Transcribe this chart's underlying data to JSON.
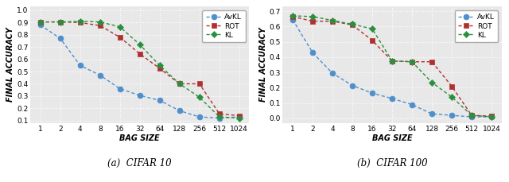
{
  "x_labels": [
    "1",
    "2",
    "4",
    "8",
    "16",
    "32",
    "64",
    "128",
    "256",
    "512",
    "1024"
  ],
  "cifar10": {
    "AvKL": [
      0.88,
      0.77,
      0.55,
      0.47,
      0.36,
      0.305,
      0.265,
      0.18,
      0.13,
      0.12,
      0.13
    ],
    "ROT": [
      0.905,
      0.905,
      0.9,
      0.875,
      0.78,
      0.645,
      0.525,
      0.4,
      0.4,
      0.155,
      0.14
    ],
    "KL": [
      0.905,
      0.905,
      0.91,
      0.905,
      0.865,
      0.72,
      0.55,
      0.4,
      0.29,
      0.13,
      0.12
    ]
  },
  "cifar100": {
    "AvKL": [
      0.645,
      0.43,
      0.295,
      0.215,
      0.165,
      0.13,
      0.09,
      0.03,
      0.02,
      0.01,
      0.01
    ],
    "ROT": [
      0.665,
      0.635,
      0.635,
      0.61,
      0.51,
      0.375,
      0.37,
      0.37,
      0.21,
      0.02,
      0.015
    ],
    "KL": [
      0.67,
      0.665,
      0.64,
      0.615,
      0.585,
      0.375,
      0.37,
      0.235,
      0.14,
      0.02,
      0.01
    ]
  },
  "colors": {
    "AvKL": "#4f8fcc",
    "ROT": "#b03030",
    "KL": "#2a9040"
  },
  "marker_colors": {
    "AvKL": "#4f8fcc",
    "ROT": "#b03030",
    "KL": "#2a9040"
  },
  "markers": {
    "AvKL": "o",
    "ROT": "s",
    "KL": "D"
  },
  "marker_sizes": {
    "AvKL": 5,
    "ROT": 4,
    "KL": 4
  },
  "ylim_cifar10": [
    0.08,
    1.03
  ],
  "ylim_cifar100": [
    -0.03,
    0.73
  ],
  "yticks_cifar10": [
    0.1,
    0.2,
    0.3,
    0.4,
    0.5,
    0.6,
    0.7,
    0.8,
    0.9,
    1.0
  ],
  "yticks_cifar100": [
    0.0,
    0.1,
    0.2,
    0.3,
    0.4,
    0.5,
    0.6,
    0.7
  ],
  "xlabel": "BAG SIZE",
  "ylabel": "FINAL ACCURACY",
  "caption_cifar10": "(a)  CIFAR 10",
  "caption_cifar100": "(b)  CIFAR 100",
  "bg_color": "#e8e8e8",
  "grid_color": "#ffffff",
  "line_width": 1.0,
  "line_style": "--",
  "legend_fontsize": 6.5,
  "axis_fontsize": 6.5,
  "label_fontsize": 7.0,
  "caption_fontsize": 8.5
}
